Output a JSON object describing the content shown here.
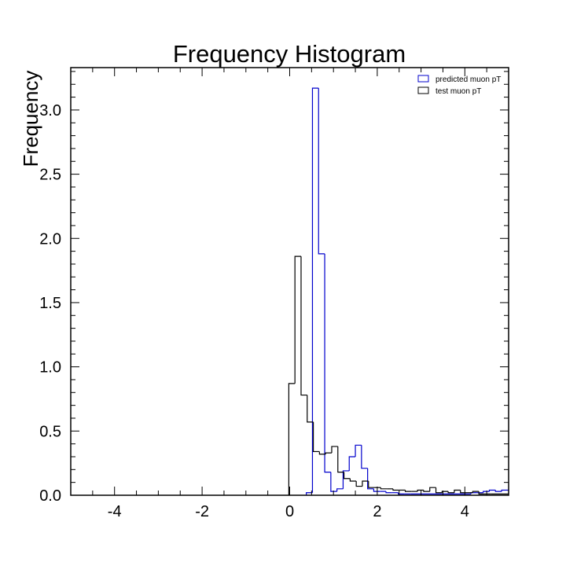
{
  "chart_data": {
    "type": "histogram",
    "title": "Frequency Histogram",
    "xlabel": "",
    "ylabel": "Frequency",
    "xlim": [
      -5,
      5
    ],
    "ylim": [
      0,
      3.33
    ],
    "x_ticks": [
      -4,
      -2,
      0,
      2,
      4
    ],
    "x_tick_labels": [
      "-4",
      "-2",
      "0",
      "2",
      "4"
    ],
    "y_ticks": [
      0,
      0.5,
      1,
      1.5,
      2,
      2.5,
      3
    ],
    "y_tick_labels": [
      "0.0",
      "0.5",
      "1.0",
      "1.5",
      "2.0",
      "2.5",
      "3.0"
    ],
    "grid": false,
    "legend_position": "top-right",
    "bin_width": 0.14,
    "series": [
      {
        "name": "predicted muon pT",
        "color": "#0000cc",
        "bins": [
          [
            0.38,
            0.52,
            0.02
          ],
          [
            0.52,
            0.66,
            3.17
          ],
          [
            0.66,
            0.8,
            1.88
          ],
          [
            0.8,
            0.94,
            0.18
          ],
          [
            0.94,
            1.08,
            0.03
          ],
          [
            1.08,
            1.22,
            0.05
          ],
          [
            1.22,
            1.36,
            0.19
          ],
          [
            1.36,
            1.5,
            0.3
          ],
          [
            1.5,
            1.64,
            0.39
          ],
          [
            1.64,
            1.78,
            0.21
          ],
          [
            1.78,
            1.92,
            0.05
          ],
          [
            1.92,
            2.06,
            0.03
          ],
          [
            2.06,
            2.2,
            0.03
          ],
          [
            2.2,
            2.34,
            0.02
          ],
          [
            2.34,
            2.48,
            0.02
          ],
          [
            2.48,
            2.62,
            0.01
          ],
          [
            2.62,
            2.76,
            0.01
          ],
          [
            2.76,
            4.0,
            0.01
          ],
          [
            4.0,
            4.14,
            0.01
          ],
          [
            4.14,
            4.28,
            0.02
          ],
          [
            4.28,
            4.42,
            0.02
          ],
          [
            4.42,
            4.56,
            0.03
          ],
          [
            4.56,
            4.7,
            0.04
          ],
          [
            4.7,
            4.84,
            0.03
          ],
          [
            4.84,
            5.0,
            0.04
          ]
        ]
      },
      {
        "name": "test muon pT",
        "color": "#000000",
        "bins": [
          [
            -0.02,
            0.12,
            0.87
          ],
          [
            0.12,
            0.26,
            1.86
          ],
          [
            0.26,
            0.4,
            0.78
          ],
          [
            0.4,
            0.54,
            0.57
          ],
          [
            0.54,
            0.68,
            0.34
          ],
          [
            0.68,
            0.82,
            0.32
          ],
          [
            0.82,
            0.96,
            0.33
          ],
          [
            0.96,
            1.1,
            0.38
          ],
          [
            1.1,
            1.24,
            0.18
          ],
          [
            1.24,
            1.38,
            0.13
          ],
          [
            1.38,
            1.52,
            0.11
          ],
          [
            1.52,
            1.66,
            0.07
          ],
          [
            1.66,
            1.8,
            0.11
          ],
          [
            1.8,
            1.94,
            0.06
          ],
          [
            1.94,
            2.08,
            0.06
          ],
          [
            2.08,
            2.22,
            0.05
          ],
          [
            2.22,
            2.36,
            0.05
          ],
          [
            2.36,
            2.5,
            0.04
          ],
          [
            2.5,
            2.64,
            0.04
          ],
          [
            2.64,
            2.78,
            0.03
          ],
          [
            2.78,
            2.92,
            0.03
          ],
          [
            2.92,
            3.06,
            0.04
          ],
          [
            3.06,
            3.2,
            0.03
          ],
          [
            3.2,
            3.34,
            0.06
          ],
          [
            3.34,
            3.48,
            0.02
          ],
          [
            3.48,
            3.62,
            0.03
          ],
          [
            3.62,
            3.76,
            0.02
          ],
          [
            3.76,
            3.9,
            0.04
          ],
          [
            3.9,
            4.04,
            0.02
          ],
          [
            4.04,
            4.18,
            0.02
          ],
          [
            4.18,
            4.32,
            0.03
          ],
          [
            4.32,
            4.46,
            0.01
          ],
          [
            4.46,
            4.6,
            0.01
          ],
          [
            4.6,
            4.74,
            0.01
          ],
          [
            4.74,
            5.0,
            0.01
          ]
        ]
      }
    ]
  }
}
